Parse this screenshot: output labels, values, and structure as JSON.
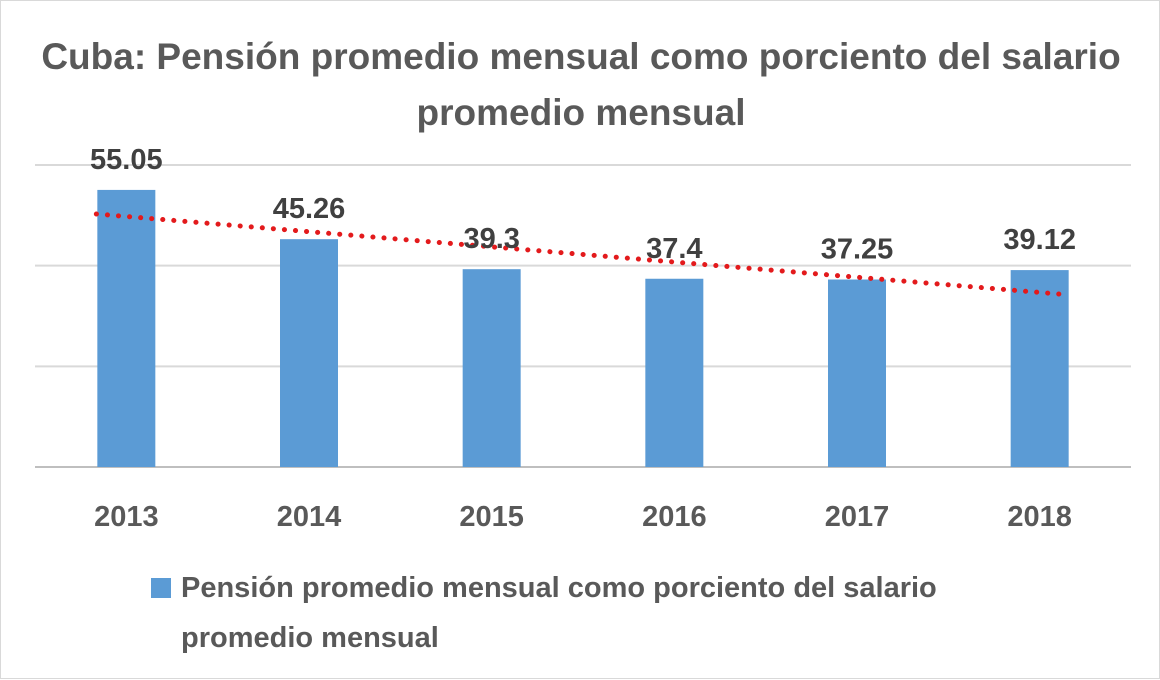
{
  "chart_data": {
    "type": "bar",
    "title": "Cuba: Pensión promedio mensual como porciento del salario promedio mensual",
    "categories": [
      "2013",
      "2014",
      "2015",
      "2016",
      "2017",
      "2018"
    ],
    "series": [
      {
        "name": "Pensión promedio mensual como porciento del salario promedio mensual",
        "values": [
          55.05,
          45.26,
          39.3,
          37.4,
          37.25,
          39.12
        ],
        "data_labels": [
          "55.05",
          "45.26",
          "39.3",
          "37.4",
          "37.25",
          "39.12"
        ],
        "color": "#5b9bd5"
      }
    ],
    "trendline": {
      "type": "linear",
      "style": "dotted",
      "color": "#e31a1c"
    },
    "ylim": [
      0,
      60
    ],
    "y_gridlines": [
      0,
      20,
      40,
      60
    ],
    "y_axis_labels_visible": false,
    "grid": true,
    "legend": "bottom",
    "xlabel": "",
    "ylabel": ""
  }
}
